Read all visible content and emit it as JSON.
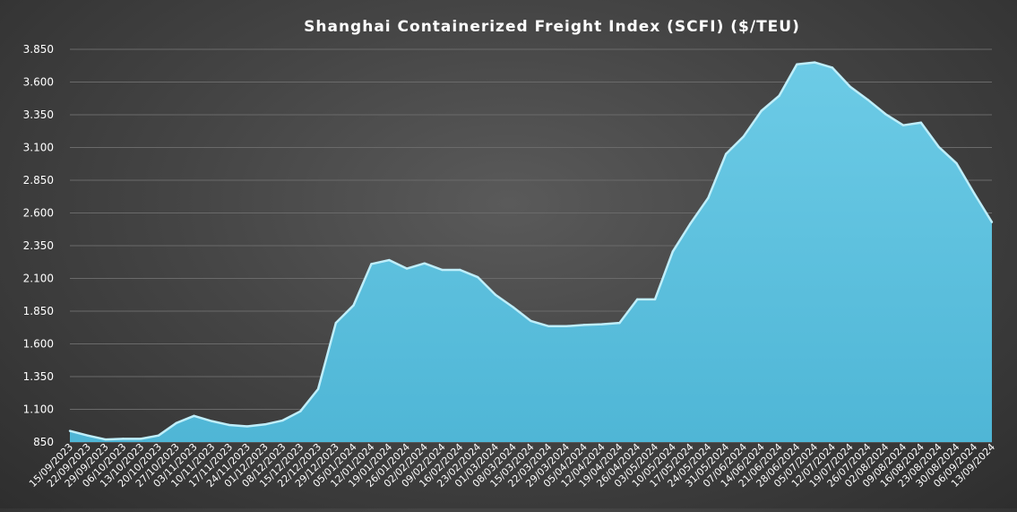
{
  "chart_data": {
    "type": "area",
    "title": "Shanghai  Containerized  Freight  Index  (SCFI) ($/TEU)",
    "xlabel": "",
    "ylabel": "",
    "ylim": [
      850,
      3850
    ],
    "yticks": [
      "850",
      "1.100",
      "1.350",
      "1.600",
      "1.850",
      "2.100",
      "2.350",
      "2.600",
      "2.850",
      "3.100",
      "3.350",
      "3.600",
      "3.850"
    ],
    "ytick_values": [
      850,
      1100,
      1350,
      1600,
      1850,
      2100,
      2350,
      2600,
      2850,
      3100,
      3350,
      3600,
      3850
    ],
    "grid": true,
    "legend": "none",
    "colors": {
      "fill": "#4fb6d6",
      "fill_light": "#6ccbe6",
      "line": "#bfeefa",
      "background": "#474747"
    },
    "categories": [
      "15/09/2023",
      "22/09/2023",
      "29/09/2023",
      "06/10/2023",
      "13/10/2023",
      "20/10/2023",
      "27/10/2023",
      "03/11/2023",
      "10/11/2023",
      "17/11/2023",
      "24/11/2023",
      "01/12/2023",
      "08/12/2023",
      "15/12/2023",
      "22/12/2023",
      "29/12/2023",
      "05/01/2024",
      "12/01/2024",
      "19/01/2024",
      "26/01/2024",
      "02/02/2024",
      "09/02/2024",
      "16/02/2024",
      "23/02/2024",
      "01/03/2024",
      "08/03/2024",
      "15/03/2024",
      "22/03/2024",
      "29/03/2024",
      "05/04/2024",
      "12/04/2024",
      "19/04/2024",
      "26/04/2024",
      "03/05/2024",
      "10/05/2024",
      "17/05/2024",
      "24/05/2024",
      "31/05/2024",
      "07/06/2024",
      "14/06/2024",
      "21/06/2024",
      "28/06/2024",
      "05/07/2024",
      "12/07/2024",
      "19/07/2024",
      "26/07/2024",
      "02/08/2024",
      "09/08/2024",
      "16/08/2024",
      "23/08/2024",
      "30/08/2024",
      "06/09/2024",
      "13/09/2024"
    ],
    "values": [
      935,
      900,
      870,
      875,
      875,
      900,
      995,
      1050,
      1010,
      980,
      970,
      985,
      1015,
      1085,
      1255,
      1760,
      1895,
      2210,
      2240,
      2175,
      2215,
      2165,
      2165,
      2110,
      1975,
      1880,
      1775,
      1735,
      1735,
      1745,
      1750,
      1760,
      1940,
      1940,
      2305,
      2520,
      2715,
      3050,
      3185,
      3380,
      3495,
      3735,
      3750,
      3710,
      3565,
      3465,
      3355,
      3270,
      3290,
      3105,
      2980,
      2750,
      2530
    ]
  }
}
